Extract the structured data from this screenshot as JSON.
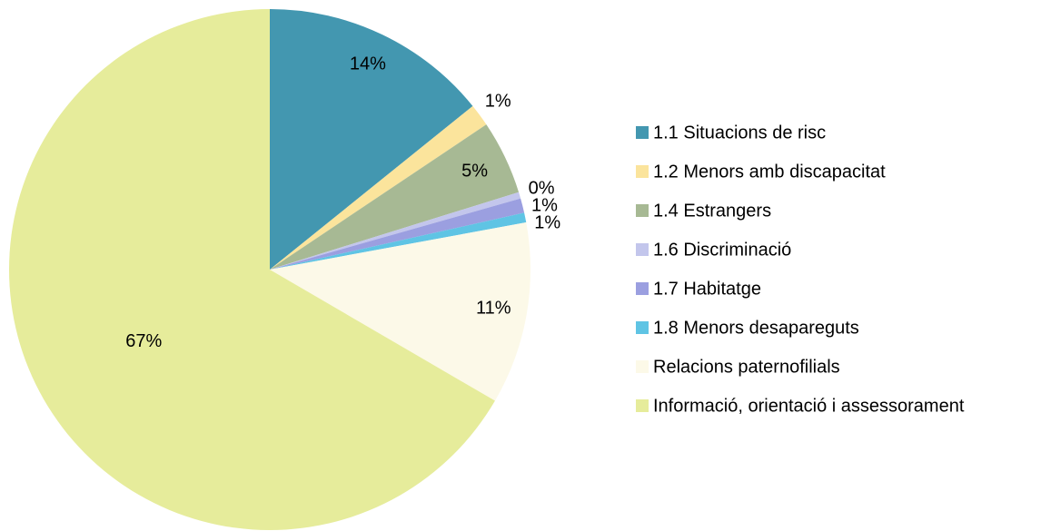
{
  "chart_data": {
    "type": "pie",
    "categories": [
      "1.1 Situacions de risc",
      "1.2 Menors amb discapacitat",
      "1.4 Estrangers",
      "1.6 Discriminació",
      "1.7 Habitatge",
      "1.8 Menors desapareguts",
      "Relacions paternofilials",
      "Informació, orientació i assessorament"
    ],
    "values": [
      14.2,
      1.4,
      4.6,
      0.4,
      0.9,
      0.6,
      11.3,
      66.6
    ],
    "value_labels": [
      "14%",
      "1%",
      "5%",
      "0%",
      "1%",
      "1%",
      "11%",
      "67%"
    ],
    "colors": [
      "#4397b0",
      "#fbe49c",
      "#a7b994",
      "#c3c6ec",
      "#9b9fe0",
      "#5fc4e4",
      "#fcf9e8",
      "#e6ec9b"
    ],
    "legend": "right"
  }
}
